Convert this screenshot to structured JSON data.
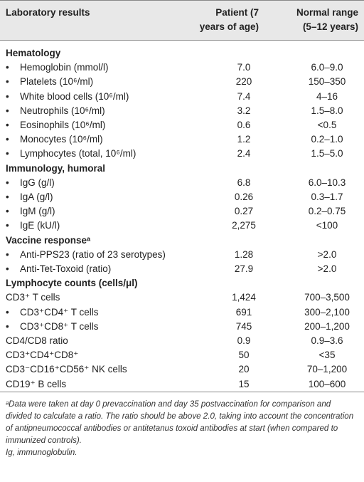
{
  "header": {
    "label": "Laboratory results",
    "patient": "Patient (7 years of age)",
    "normal": "Normal range (5–12 years)"
  },
  "sections": [
    {
      "title": "Hematology",
      "rows": [
        {
          "label": "Hemoglobin (mmol/l)",
          "patient": "7.0",
          "normal": "6.0–9.0",
          "bullet": true
        },
        {
          "label": "Platelets (10⁶/ml)",
          "patient": "220",
          "normal": "150–350",
          "bullet": true
        },
        {
          "label": "White blood cells (10⁶/ml)",
          "patient": "7.4",
          "normal": "4–16",
          "bullet": true
        },
        {
          "label": "Neutrophils (10⁶/ml)",
          "patient": "3.2",
          "normal": "1.5–8.0",
          "bullet": true
        },
        {
          "label": "Eosinophils (10⁶/ml)",
          "patient": "0.6",
          "normal": "<0.5",
          "bullet": true
        },
        {
          "label": "Monocytes (10⁶/ml)",
          "patient": "1.2",
          "normal": "0.2–1.0",
          "bullet": true
        },
        {
          "label": "Lymphocytes (total, 10⁶/ml)",
          "patient": "2.4",
          "normal": "1.5–5.0",
          "bullet": true
        }
      ]
    },
    {
      "title": "Immunology, humoral",
      "rows": [
        {
          "label": "IgG (g/l)",
          "patient": "6.8",
          "normal": "6.0–10.3",
          "bullet": true
        },
        {
          "label": "IgA (g/l)",
          "patient": "0.26",
          "normal": "0.3–1.7",
          "bullet": true
        },
        {
          "label": "IgM (g/l)",
          "patient": "0.27",
          "normal": "0.2–0.75",
          "bullet": true
        },
        {
          "label": "IgE (kU/l)",
          "patient": "2,275",
          "normal": "<100",
          "bullet": true
        }
      ]
    },
    {
      "title": "Vaccine responseᵃ",
      "rows": [
        {
          "label": "Anti-PPS23 (ratio of 23 serotypes)",
          "patient": "1.28",
          "normal": ">2.0",
          "bullet": true
        },
        {
          "label": "Anti-Tet-Toxoid (ratio)",
          "patient": "27.9",
          "normal": ">2.0",
          "bullet": true
        }
      ]
    },
    {
      "title": "Lymphocyte counts (cells/μl)",
      "rows": [
        {
          "label": "CD3⁺ T cells",
          "patient": "1,424",
          "normal": "700–3,500",
          "bullet": false
        },
        {
          "label": "CD3⁺CD4⁺ T cells",
          "patient": "691",
          "normal": "300–2,100",
          "bullet": true
        },
        {
          "label": "CD3⁺CD8⁺ T cells",
          "patient": "745",
          "normal": "200–1,200",
          "bullet": true
        },
        {
          "label": "CD4/CD8 ratio",
          "patient": "0.9",
          "normal": "0.9–3.6",
          "bullet": false
        },
        {
          "label": "CD3⁺CD4⁺CD8⁺",
          "patient": "50",
          "normal": "<35",
          "bullet": false
        },
        {
          "label": "CD3⁻CD16⁺CD56⁺ NK cells",
          "patient": "20",
          "normal": "70–1,200",
          "bullet": false
        },
        {
          "label": "CD19⁺ B cells",
          "patient": "15",
          "normal": "100–600",
          "bullet": false
        }
      ]
    }
  ],
  "footnotes": [
    "ᵃData were taken at day 0 prevaccination and day 35 postvaccination for comparison and divided to calculate a ratio. The ratio should be above 2.0, taking into account the concentration of antipneumococcal antibodies or antitetanus toxoid antibodies at start (when compared to immunized controls).",
    "Ig, immunoglobulin."
  ]
}
